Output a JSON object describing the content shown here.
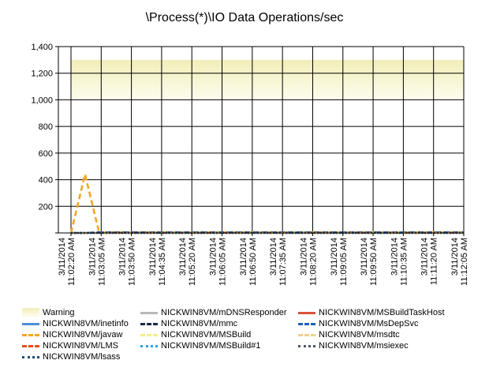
{
  "chart_data": {
    "type": "line",
    "title": "\\Process(*)\\IO Data Operations/sec",
    "ylim": [
      0,
      1400
    ],
    "yticks": [
      "",
      "200",
      "400",
      "600",
      "800",
      "1,000",
      "1,200",
      "1,400"
    ],
    "x_ticks": [
      "3/11/2014 11:02:20 AM",
      "3/11/2014 11:03:05 AM",
      "3/11/2014 11:03:50 AM",
      "3/11/2014 11:04:35 AM",
      "3/11/2014 11:05:20 AM",
      "3/11/2014 11:06:05 AM",
      "3/11/2014 11:06:50 AM",
      "3/11/2014 11:07:35 AM",
      "3/11/2014 11:08:20 AM",
      "3/11/2014 11:09:05 AM",
      "3/11/2014 11:09:50 AM",
      "3/11/2014 11:10:35 AM",
      "3/11/2014 11:11:20 AM",
      "3/11/2014 11:12:05 AM"
    ],
    "grid": true,
    "legend_position": "bottom",
    "warning_band": {
      "name": "Warning",
      "range": [
        1000,
        1300
      ],
      "color": "#f2eeb8"
    },
    "series": [
      {
        "name": "NICKWIN8VM/inetinfo",
        "color": "#4a90d9",
        "style": "solid",
        "values": [
          0,
          0,
          0,
          0,
          0,
          0,
          0,
          0,
          0,
          0,
          0,
          0,
          0,
          0,
          0,
          0,
          0,
          0,
          0,
          0,
          0,
          0,
          0,
          0,
          0,
          0,
          0,
          0,
          0
        ]
      },
      {
        "name": "NICKWIN8VM/javaw",
        "color": "#f5a623",
        "style": "dash",
        "values": [
          0,
          440,
          5,
          5,
          5,
          5,
          5,
          5,
          5,
          5,
          5,
          5,
          5,
          5,
          5,
          5,
          5,
          5,
          5,
          5,
          5,
          5,
          5,
          5,
          5,
          5,
          5,
          5,
          5
        ]
      },
      {
        "name": "NICKWIN8VM/LMS",
        "color": "#e8501a",
        "style": "dashdot",
        "values": [
          0,
          0,
          0,
          0,
          0,
          0,
          0,
          0,
          0,
          0,
          0,
          0,
          0,
          0,
          0,
          0,
          0,
          0,
          0,
          0,
          0,
          0,
          0,
          0,
          0,
          0,
          0,
          0,
          0
        ]
      },
      {
        "name": "NICKWIN8VM/lsass",
        "color": "#1f4e79",
        "style": "dot",
        "values": [
          0,
          0,
          3,
          3,
          3,
          3,
          3,
          3,
          3,
          3,
          3,
          3,
          3,
          3,
          3,
          3,
          3,
          3,
          3,
          3,
          3,
          3,
          3,
          3,
          3,
          3,
          3,
          3,
          3
        ]
      },
      {
        "name": "NICKWIN8VM/mDNSResponder",
        "color": "#b8b8b8",
        "style": "solid",
        "values": [
          0,
          0,
          0,
          0,
          0,
          0,
          0,
          0,
          0,
          0,
          0,
          0,
          0,
          0,
          0,
          0,
          0,
          0,
          0,
          0,
          0,
          0,
          0,
          0,
          0,
          0,
          0,
          0,
          0
        ]
      },
      {
        "name": "NICKWIN8VM/mmc",
        "color": "#1b2a44",
        "style": "dash",
        "values": [
          0,
          0,
          4,
          4,
          4,
          4,
          4,
          4,
          4,
          4,
          4,
          4,
          4,
          4,
          4,
          4,
          4,
          4,
          4,
          4,
          4,
          4,
          4,
          4,
          4,
          4,
          4,
          4,
          4
        ]
      },
      {
        "name": "NICKWIN8VM/MSBuild",
        "color": "#f4ec8e",
        "style": "dashdot",
        "values": [
          0,
          0,
          0,
          0,
          0,
          0,
          0,
          0,
          0,
          0,
          0,
          0,
          0,
          0,
          0,
          0,
          0,
          0,
          0,
          0,
          0,
          0,
          0,
          0,
          0,
          0,
          0,
          0,
          0
        ]
      },
      {
        "name": "NICKWIN8VM/MSBuild#1",
        "color": "#2fa0e0",
        "style": "dot",
        "values": [
          0,
          0,
          0,
          0,
          0,
          0,
          0,
          0,
          0,
          0,
          0,
          0,
          0,
          0,
          0,
          0,
          0,
          0,
          0,
          0,
          0,
          0,
          0,
          0,
          0,
          0,
          0,
          0,
          0
        ]
      },
      {
        "name": "NICKWIN8VM/MSBuildTaskHost",
        "color": "#d9533b",
        "style": "solid",
        "values": [
          0,
          0,
          0,
          0,
          0,
          0,
          0,
          0,
          0,
          0,
          0,
          0,
          0,
          0,
          0,
          0,
          0,
          0,
          0,
          0,
          0,
          0,
          0,
          0,
          0,
          0,
          0,
          0,
          0
        ]
      },
      {
        "name": "NICKWIN8VM/MsDepSvc",
        "color": "#1f5fbf",
        "style": "dash",
        "values": [
          0,
          0,
          2,
          2,
          2,
          2,
          2,
          2,
          2,
          2,
          2,
          2,
          2,
          2,
          2,
          2,
          2,
          2,
          2,
          2,
          2,
          2,
          2,
          2,
          2,
          2,
          2,
          2,
          2
        ]
      },
      {
        "name": "NICKWIN8VM/msdtc",
        "color": "#f2d08a",
        "style": "dashdot",
        "values": [
          0,
          0,
          0,
          0,
          0,
          0,
          0,
          0,
          0,
          0,
          0,
          0,
          0,
          0,
          0,
          0,
          0,
          0,
          0,
          0,
          0,
          0,
          0,
          0,
          0,
          0,
          0,
          0,
          0
        ]
      },
      {
        "name": "NICKWIN8VM/msiexec",
        "color": "#4a5a6a",
        "style": "dot",
        "values": [
          0,
          0,
          0,
          0,
          0,
          0,
          0,
          0,
          0,
          0,
          0,
          0,
          0,
          0,
          0,
          0,
          0,
          0,
          0,
          0,
          0,
          0,
          0,
          0,
          0,
          0,
          0,
          0,
          0
        ]
      }
    ]
  }
}
